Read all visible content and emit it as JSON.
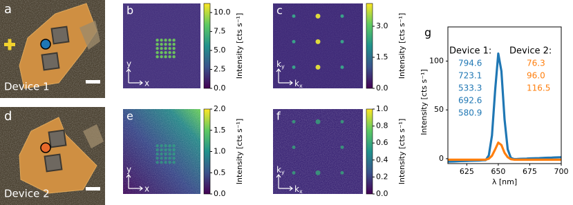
{
  "micrographs": [
    {
      "label": "a",
      "device": "Device 1",
      "marker_color": "#1f77b4"
    },
    {
      "label": "d",
      "device": "Device 2",
      "marker_color": "#e8692a"
    }
  ],
  "maps": [
    {
      "label": "b",
      "y_axis": "y",
      "x_axis": "x",
      "colorbar": {
        "label": "Intensity [cts s⁻¹]",
        "lim": [
          0,
          11.2
        ],
        "ticks": [
          {
            "value": 0,
            "label": "0.0"
          },
          2.5,
          {
            "value": 5,
            "label": "5.0"
          },
          7.5,
          {
            "value": 10,
            "label": "10.0"
          }
        ]
      }
    },
    {
      "label": "c",
      "y_axis": {
        "main": "k",
        "sub": "y"
      },
      "x_axis": {
        "main": "k",
        "sub": "x"
      },
      "colorbar": {
        "label": "Intensity [cts s⁻¹]",
        "lim": [
          0,
          4.1
        ],
        "ticks": [
          {
            "value": 0,
            "label": "0.0"
          },
          1.5,
          {
            "value": 3,
            "label": "3.0"
          }
        ]
      }
    },
    {
      "label": "e",
      "y_axis": "y",
      "x_axis": "x",
      "colorbar": {
        "label": "Intensity [cts s⁻¹]",
        "lim": [
          0,
          2.0
        ],
        "ticks": [
          {
            "value": 0,
            "label": "0.0"
          },
          0.5,
          {
            "value": 1,
            "label": "1.0"
          },
          1.5,
          {
            "value": 2,
            "label": "2.0"
          }
        ]
      }
    },
    {
      "label": "f",
      "y_axis": {
        "main": "k",
        "sub": "y"
      },
      "x_axis": {
        "main": "k",
        "sub": "x"
      },
      "colorbar": {
        "label": "Intensity [cts s⁻¹]",
        "lim": [
          0,
          1.0
        ],
        "ticks": [
          {
            "value": 0,
            "label": "0.0"
          },
          0.2,
          0.4,
          0.6,
          0.8,
          {
            "value": 1,
            "label": "1.0"
          }
        ]
      }
    }
  ],
  "chart_data": {
    "type": "line",
    "label": "g",
    "xlabel": "λ [nm]",
    "ylabel": "Intensity [cts s⁻¹]",
    "x": [
      610,
      612.5,
      615,
      617.5,
      620,
      622.5,
      625,
      627.5,
      630,
      632.5,
      635,
      637.5,
      640,
      642.5,
      645,
      647.5,
      650,
      652.5,
      655,
      657.5,
      660,
      662.5,
      665,
      667.5,
      670,
      672.5,
      675,
      677.5,
      680,
      682.5,
      685,
      687.5,
      690,
      692.5,
      695,
      697.5,
      700
    ],
    "xlim": [
      610,
      700
    ],
    "xticks": [
      625,
      650,
      675,
      700
    ],
    "ylim": [
      -5,
      135
    ],
    "yticks": [
      0,
      50,
      100
    ],
    "series": [
      {
        "name": "Device 1:",
        "color": "#1f77b4",
        "values": [
          -3.0,
          -2.9,
          -2.8,
          -2.6,
          -2.5,
          -2.4,
          -2.3,
          -2.1,
          -2.0,
          -1.9,
          -1.8,
          -1.6,
          -1.5,
          3.4,
          23.8,
          69.8,
          107.7,
          89.6,
          40.1,
          9.5,
          0.8,
          -0.4,
          -0.3,
          -0.1,
          0.0,
          0.1,
          0.3,
          0.4,
          0.5,
          0.6,
          0.8,
          0.9,
          1.0,
          1.1,
          1.3,
          1.4,
          1.5
        ],
        "peaks": [
          "794.6",
          "723.1",
          "533.3",
          "692.6",
          "580.9"
        ]
      },
      {
        "name": "Device 2:",
        "color": "#ff7f0e",
        "values": [
          -1.0,
          -1.0,
          -1.0,
          -1.0,
          -1.0,
          -1.0,
          -1.0,
          -1.0,
          -1.0,
          -1.0,
          -1.0,
          -1.0,
          -1.0,
          0.0,
          3.0,
          9.5,
          16.5,
          14.0,
          6.0,
          1.5,
          -0.5,
          -1.0,
          -1.0,
          -1.0,
          -1.0,
          -1.0,
          -1.0,
          -1.0,
          -1.0,
          -1.0,
          -1.0,
          -1.0,
          -1.0,
          -1.0,
          -1.0,
          -1.0,
          -1.0
        ],
        "peaks": [
          "76.3",
          "96.0",
          "116.5"
        ]
      }
    ]
  }
}
